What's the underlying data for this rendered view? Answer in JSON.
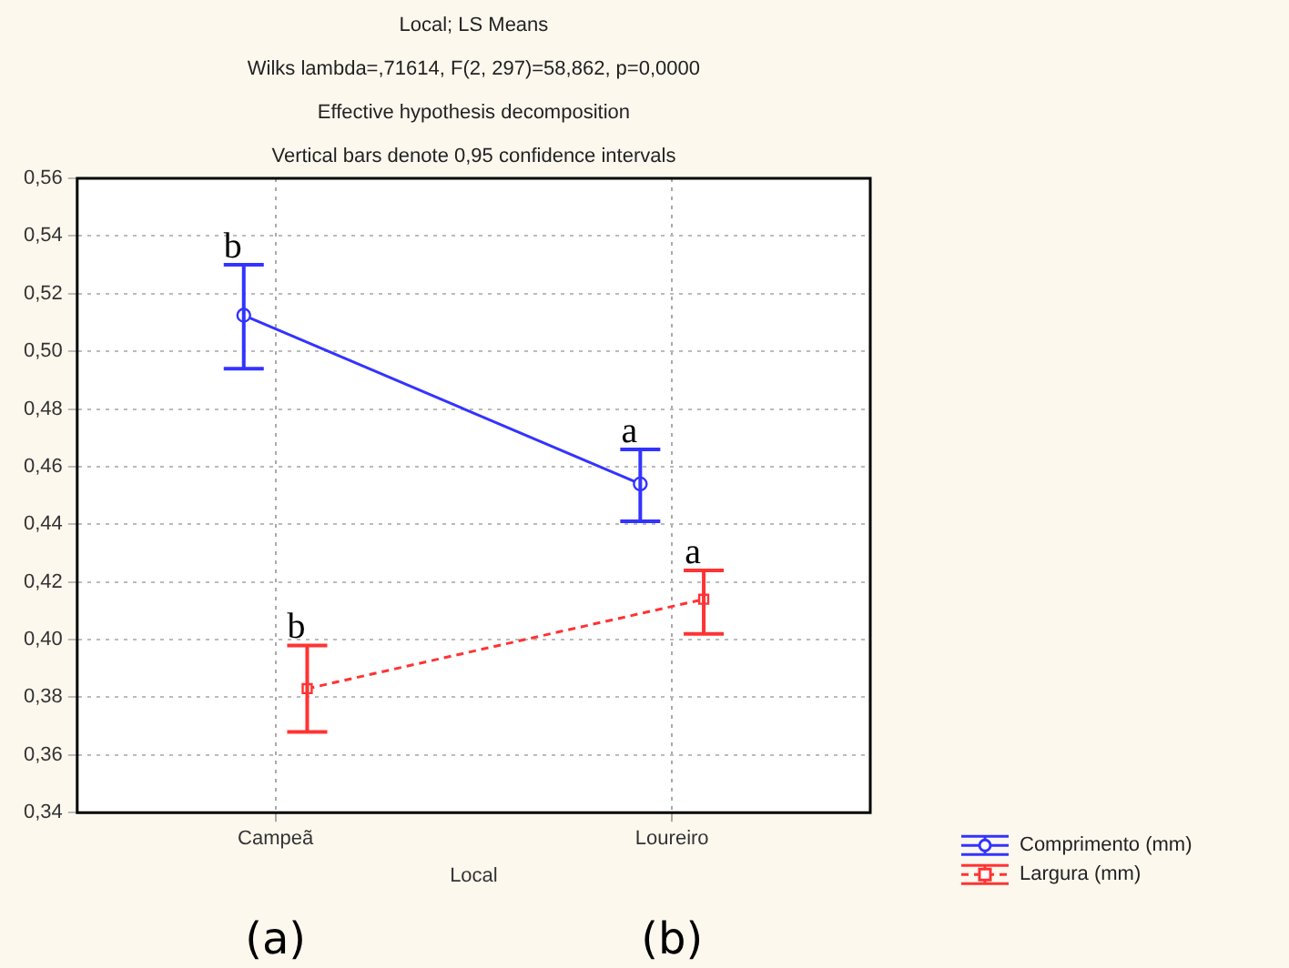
{
  "chart_data": {
    "type": "line",
    "title": "Local; LS Means",
    "subtitle": "Wilks lambda=,71614, F(2, 297)=58,862, p=0,0000\nEffective hypothesis decomposition\nVertical bars denote 0,95 confidence intervals",
    "xlabel": "Local",
    "categories": [
      "Campeã",
      "Loureiro"
    ],
    "series": [
      {
        "name": "Comprimento (mm)",
        "color": "#3333ff",
        "values": [
          0.5125,
          0.454
        ],
        "errors": [
          [
            0.494,
            0.53
          ],
          [
            0.441,
            0.466
          ]
        ],
        "marker": "circle",
        "line_style": "solid"
      },
      {
        "name": "Largura (mm)",
        "color": "#ff3333",
        "values": [
          0.383,
          0.414
        ],
        "errors": [
          [
            0.368,
            0.398
          ],
          [
            0.402,
            0.424
          ]
        ],
        "marker": "square",
        "line_style": "dashed"
      }
    ],
    "ylim": [
      0.34,
      0.56
    ],
    "yticks": [
      {
        "value": 0.34,
        "label": "0,34"
      },
      {
        "value": 0.36,
        "label": "0,36"
      },
      {
        "value": 0.38,
        "label": "0,38"
      },
      {
        "value": 0.4,
        "label": "0,40"
      },
      {
        "value": 0.42,
        "label": "0,42"
      },
      {
        "value": 0.44,
        "label": "0,44"
      },
      {
        "value": 0.46,
        "label": "0,46"
      },
      {
        "value": 0.48,
        "label": "0,48"
      },
      {
        "value": 0.5,
        "label": "0,50"
      },
      {
        "value": 0.52,
        "label": "0,52"
      },
      {
        "value": 0.54,
        "label": "0,54"
      },
      {
        "value": 0.56,
        "label": "0,56"
      }
    ],
    "grid": true,
    "legend": "bottom right",
    "annotations": [
      "b",
      "a",
      "b",
      "a",
      "(a)",
      "(b)"
    ]
  }
}
